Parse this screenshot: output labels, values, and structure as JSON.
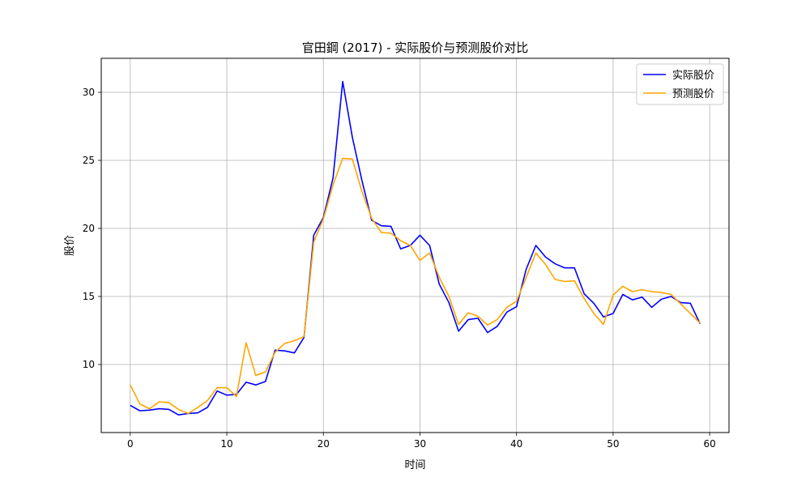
{
  "chart_data": {
    "type": "line",
    "title": "官田鋼 (2017) - 实际股价与预测股价对比",
    "xlabel": "时间",
    "ylabel": "股价",
    "xlim": [
      -3,
      62
    ],
    "ylim": [
      5,
      32.5
    ],
    "xticks": [
      0,
      10,
      20,
      30,
      40,
      50,
      60
    ],
    "yticks": [
      10,
      15,
      20,
      25,
      30
    ],
    "grid": true,
    "legend_position": "top-right",
    "x": [
      0,
      1,
      2,
      3,
      4,
      5,
      6,
      7,
      8,
      9,
      10,
      11,
      12,
      13,
      14,
      15,
      16,
      17,
      18,
      19,
      20,
      21,
      22,
      23,
      24,
      25,
      26,
      27,
      28,
      29,
      30,
      31,
      32,
      33,
      34,
      35,
      36,
      37,
      38,
      39,
      40,
      41,
      42,
      43,
      44,
      45,
      46,
      47,
      48,
      49,
      50,
      51,
      52,
      53,
      54,
      55,
      56,
      57,
      58,
      59
    ],
    "series": [
      {
        "name": "实际股价",
        "color": "#0000ff",
        "values": [
          7.0,
          6.6,
          6.65,
          6.75,
          6.7,
          6.3,
          6.4,
          6.45,
          6.85,
          8.05,
          7.75,
          7.8,
          8.7,
          8.5,
          8.75,
          11.05,
          11.0,
          10.85,
          12.0,
          19.5,
          20.8,
          23.7,
          30.8,
          26.7,
          23.5,
          20.6,
          20.2,
          20.15,
          18.5,
          18.75,
          19.5,
          18.75,
          15.9,
          14.55,
          12.45,
          13.3,
          13.4,
          12.35,
          12.8,
          13.85,
          14.25,
          17.0,
          18.75,
          17.9,
          17.4,
          17.1,
          17.1,
          15.2,
          14.5,
          13.5,
          13.75,
          15.15,
          14.75,
          14.95,
          14.2,
          14.8,
          15.0,
          14.55,
          14.5,
          13.0
        ]
      },
      {
        "name": "预测股价",
        "color": "#ffa500",
        "values": [
          8.5,
          7.1,
          6.75,
          7.25,
          7.2,
          6.7,
          6.4,
          6.85,
          7.35,
          8.3,
          8.3,
          7.65,
          11.6,
          9.2,
          9.45,
          10.9,
          11.55,
          11.75,
          12.05,
          19.0,
          20.7,
          23.2,
          25.15,
          25.1,
          22.7,
          20.75,
          19.7,
          19.65,
          19.1,
          18.75,
          17.65,
          18.2,
          16.4,
          15.0,
          12.95,
          13.8,
          13.55,
          12.9,
          13.3,
          14.2,
          14.65,
          16.4,
          18.2,
          17.35,
          16.25,
          16.1,
          16.15,
          14.85,
          13.75,
          12.95,
          15.1,
          15.75,
          15.35,
          15.5,
          15.35,
          15.3,
          15.15,
          14.45,
          13.75,
          13.05
        ]
      }
    ]
  }
}
